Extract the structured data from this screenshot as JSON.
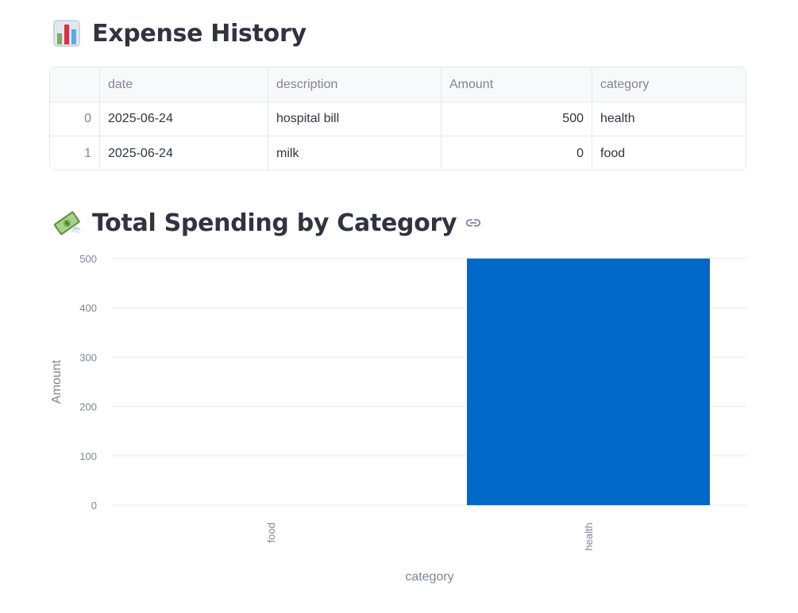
{
  "history": {
    "title": "Expense History",
    "icon": "bar-chart-emoji-icon"
  },
  "table": {
    "columns": [
      "",
      "date",
      "description",
      "Amount",
      "category"
    ],
    "rows": [
      {
        "index": "0",
        "date": "2025-06-24",
        "description": "hospital bill",
        "amount": "500",
        "category": "health"
      },
      {
        "index": "1",
        "date": "2025-06-24",
        "description": "milk",
        "amount": "0",
        "category": "food"
      }
    ]
  },
  "spending": {
    "title": "Total Spending by Category",
    "icon": "money-with-wings-emoji-icon",
    "link_icon": "link-icon"
  },
  "chart_data": {
    "type": "bar",
    "categories": [
      "food",
      "health"
    ],
    "values": [
      0,
      500
    ],
    "xlabel": "category",
    "ylabel": "Amount",
    "ylim": [
      0,
      500
    ],
    "yticks": [
      0,
      100,
      200,
      300,
      400,
      500
    ],
    "grid": true,
    "bar_color": "#0068c9"
  }
}
